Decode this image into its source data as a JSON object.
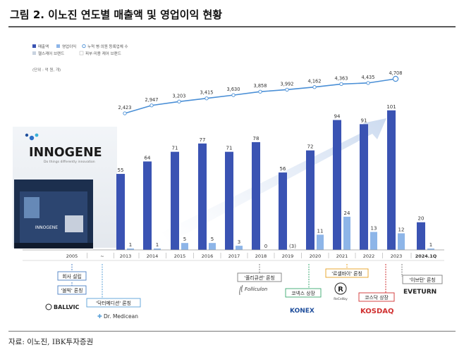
{
  "figure": {
    "title": "그림 2. 이노진 연도별 매출액 및 영업이익 현황",
    "source": "자료: 이노진, IBK투자증권"
  },
  "chart_data": {
    "type": "bar",
    "unit_label": "(단위 : 억 원, 개)",
    "legend": [
      "매출액",
      "영업이익",
      "누적 병·의원 등록업체 수",
      "헬스케어 브랜드",
      "피부·미용 케어 브랜드"
    ],
    "categories": [
      "2005",
      "~",
      "2013",
      "2014",
      "2015",
      "2016",
      "2017",
      "2018",
      "2019",
      "2020",
      "2021",
      "2022",
      "2023",
      "2024.1Q"
    ],
    "series": [
      {
        "name": "매출액",
        "color": "#3a53b3",
        "values": [
          null,
          null,
          55,
          64,
          71,
          77,
          71,
          78,
          56,
          72,
          94,
          91,
          101,
          20
        ],
        "labels": [
          "",
          "",
          "55",
          "64",
          "71",
          "77",
          "71",
          "78",
          "56",
          "72",
          "94",
          "91",
          "101",
          "20"
        ]
      },
      {
        "name": "영업이익",
        "color": "#8db5e8",
        "values": [
          null,
          null,
          1,
          1,
          5,
          5,
          3,
          0,
          -3,
          11,
          24,
          13,
          12,
          1
        ],
        "labels": [
          "",
          "",
          "1",
          "1",
          "5",
          "5",
          "3",
          "0",
          "(3)",
          "11",
          "24",
          "13",
          "12",
          "1"
        ]
      },
      {
        "name": "누적 병·의원 등록업체 수",
        "color": "#4a8fd6",
        "values": [
          null,
          null,
          2423,
          2947,
          3203,
          3415,
          3630,
          3858,
          3992,
          4162,
          4363,
          4435,
          4708,
          null
        ],
        "labels": [
          "",
          "",
          "2,423",
          "2,947",
          "3,203",
          "3,415",
          "3,630",
          "3,858",
          "3,992",
          "4,162",
          "4,363",
          "4,435",
          "4,708",
          ""
        ]
      }
    ],
    "ylim_bars": [
      0,
      110
    ],
    "ylim_line": [
      0,
      5000
    ]
  },
  "photo": {
    "company_logo": "INNOGENE",
    "tagline": "Do things differently innovation",
    "sign": "INNOGENE"
  },
  "milestones": [
    {
      "text": "회사 설립",
      "color": "#4a7fc4"
    },
    {
      "text": "'볼빅' 론칭",
      "color": "#4a7fc4"
    },
    {
      "text": "'닥터메디션' 론칭",
      "color": "#5aa0d8"
    },
    {
      "text": "'폴리큐션' 론칭",
      "color": "#7f7f7f"
    },
    {
      "text": "코넥스 상장",
      "color": "#3aa870"
    },
    {
      "text": "'르셀바이' 론칭",
      "color": "#e8a020"
    },
    {
      "text": "코스닥 상장",
      "color": "#d03030"
    },
    {
      "text": "'이브턴' 론칭",
      "color": "#7f7f7f"
    }
  ],
  "brand_logos": {
    "ballvic": "BALLVIC",
    "drmedicean": "Dr. Medicean",
    "folliculon": "Folliculon",
    "konex": "KONEX",
    "recellby": "ReCellby",
    "kosdaq": "KOSDAQ",
    "eveturn": "EVETURN"
  }
}
